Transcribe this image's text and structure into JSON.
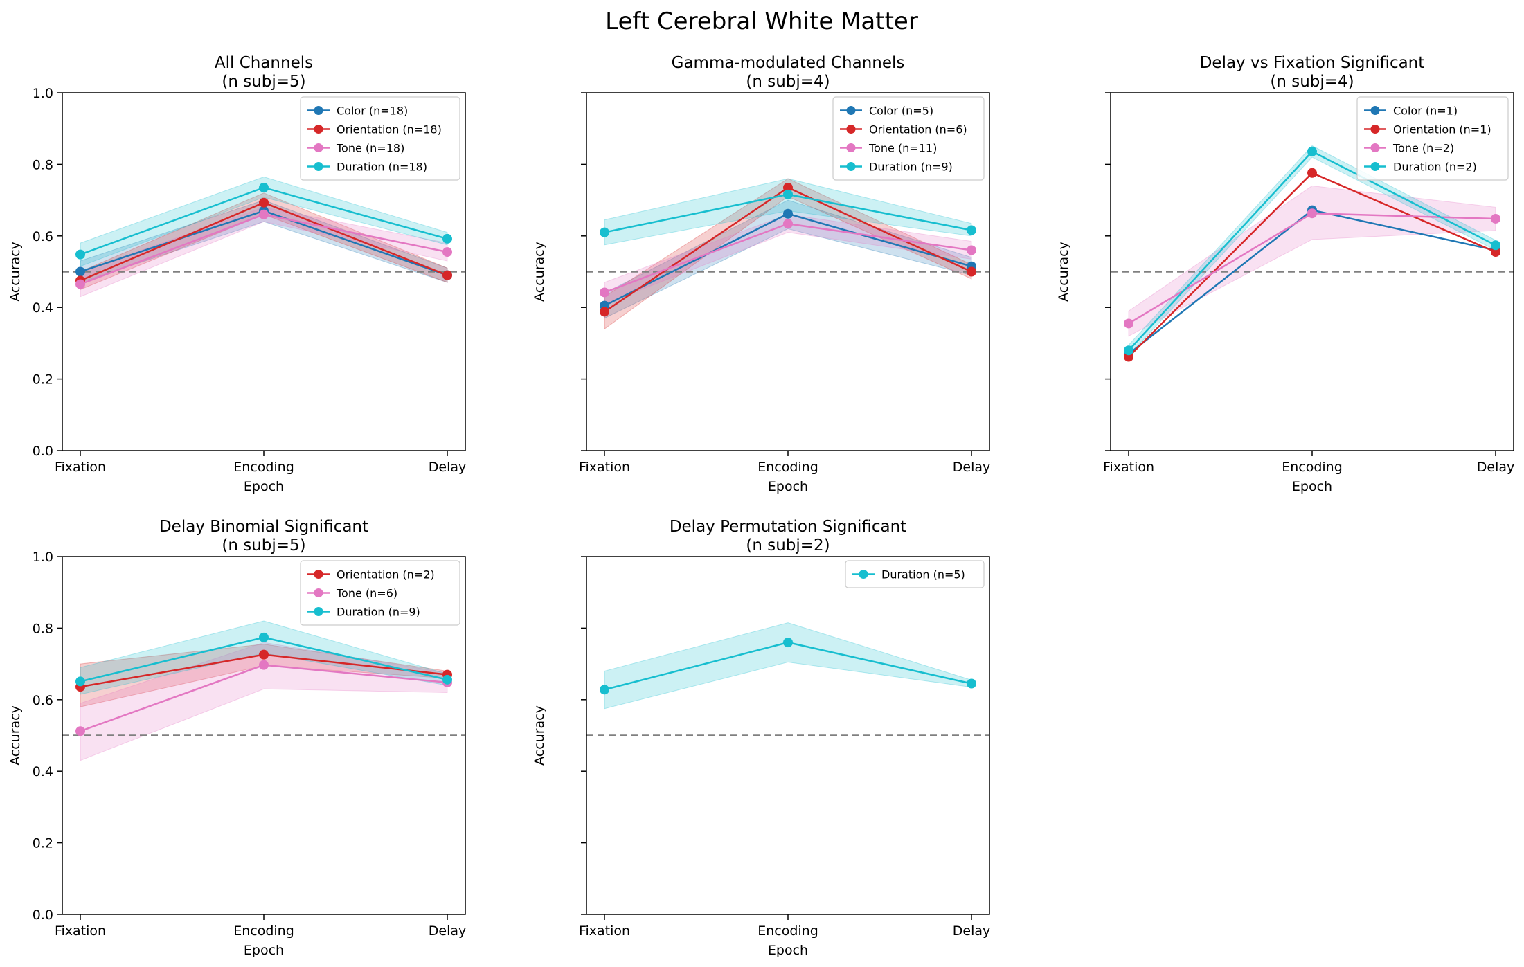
{
  "figure_title": "Left Cerebral White Matter",
  "colors": {
    "Color": "#1f77b4",
    "Orientation": "#d62728",
    "Tone": "#e377c2",
    "Duration": "#17becf",
    "chance_line": "#808080"
  },
  "chart_data": [
    {
      "type": "line",
      "title_line1": "All Channels",
      "title_line2": "(n subj=5)",
      "xlabel": "Epoch",
      "ylabel": "Accuracy",
      "categories": [
        "Fixation",
        "Encoding",
        "Delay"
      ],
      "ylim": [
        0,
        1
      ],
      "yticks": [
        "0.0",
        "0.2",
        "0.4",
        "0.6",
        "0.8",
        "1.0"
      ],
      "show_ytick_labels": true,
      "show_xlabel": true,
      "chance": 0.5,
      "legend_position": "upper right",
      "series": [
        {
          "key": "Color",
          "name": "Color (n=18)",
          "values": [
            0.5,
            0.67,
            0.49
          ],
          "lower": [
            0.47,
            0.64,
            0.47
          ],
          "upper": [
            0.53,
            0.7,
            0.51
          ]
        },
        {
          "key": "Orientation",
          "name": "Orientation (n=18)",
          "values": [
            0.475,
            0.693,
            0.49
          ],
          "lower": [
            0.45,
            0.66,
            0.47
          ],
          "upper": [
            0.5,
            0.72,
            0.51
          ]
        },
        {
          "key": "Tone",
          "name": "Tone (n=18)",
          "values": [
            0.465,
            0.66,
            0.555
          ],
          "lower": [
            0.43,
            0.64,
            0.53
          ],
          "upper": [
            0.5,
            0.68,
            0.58
          ]
        },
        {
          "key": "Duration",
          "name": "Duration (n=18)",
          "values": [
            0.548,
            0.735,
            0.592
          ],
          "lower": [
            0.515,
            0.708,
            0.575
          ],
          "upper": [
            0.58,
            0.765,
            0.61
          ]
        }
      ]
    },
    {
      "type": "line",
      "title_line1": "Gamma-modulated Channels",
      "title_line2": "(n subj=4)",
      "xlabel": "Epoch",
      "ylabel": "Accuracy",
      "categories": [
        "Fixation",
        "Encoding",
        "Delay"
      ],
      "ylim": [
        0,
        1
      ],
      "yticks": [
        "0.0",
        "0.2",
        "0.4",
        "0.6",
        "0.8",
        "1.0"
      ],
      "show_ytick_labels": false,
      "show_xlabel": true,
      "chance": 0.5,
      "legend_position": "upper right",
      "series": [
        {
          "key": "Color",
          "name": "Color (n=5)",
          "values": [
            0.405,
            0.662,
            0.515
          ],
          "lower": [
            0.37,
            0.62,
            0.49
          ],
          "upper": [
            0.44,
            0.7,
            0.54
          ]
        },
        {
          "key": "Orientation",
          "name": "Orientation (n=6)",
          "values": [
            0.388,
            0.735,
            0.5
          ],
          "lower": [
            0.34,
            0.71,
            0.48
          ],
          "upper": [
            0.43,
            0.76,
            0.52
          ]
        },
        {
          "key": "Tone",
          "name": "Tone (n=11)",
          "values": [
            0.442,
            0.634,
            0.56
          ],
          "lower": [
            0.41,
            0.61,
            0.535
          ],
          "upper": [
            0.47,
            0.66,
            0.585
          ]
        },
        {
          "key": "Duration",
          "name": "Duration (n=9)",
          "values": [
            0.61,
            0.716,
            0.616
          ],
          "lower": [
            0.575,
            0.67,
            0.6
          ],
          "upper": [
            0.645,
            0.76,
            0.635
          ]
        }
      ]
    },
    {
      "type": "line",
      "title_line1": "Delay vs Fixation Significant",
      "title_line2": "(n subj=4)",
      "xlabel": "Epoch",
      "ylabel": "Accuracy",
      "categories": [
        "Fixation",
        "Encoding",
        "Delay"
      ],
      "ylim": [
        0,
        1
      ],
      "yticks": [
        "0.0",
        "0.2",
        "0.4",
        "0.6",
        "0.8",
        "1.0"
      ],
      "show_ytick_labels": false,
      "show_xlabel": true,
      "chance": 0.5,
      "legend_position": "upper right",
      "series": [
        {
          "key": "Color",
          "name": "Color (n=1)",
          "values": [
            0.27,
            0.672,
            0.56
          ]
        },
        {
          "key": "Orientation",
          "name": "Orientation (n=1)",
          "values": [
            0.262,
            0.776,
            0.555
          ]
        },
        {
          "key": "Tone",
          "name": "Tone (n=2)",
          "values": [
            0.355,
            0.663,
            0.648
          ],
          "lower": [
            0.32,
            0.59,
            0.615
          ],
          "upper": [
            0.39,
            0.74,
            0.68
          ]
        },
        {
          "key": "Duration",
          "name": "Duration (n=2)",
          "values": [
            0.28,
            0.836,
            0.574
          ],
          "lower": [
            0.265,
            0.82,
            0.56
          ],
          "upper": [
            0.295,
            0.852,
            0.588
          ]
        }
      ]
    },
    {
      "type": "line",
      "title_line1": "Delay Binomial Significant",
      "title_line2": "(n subj=5)",
      "xlabel": "Epoch",
      "ylabel": "Accuracy",
      "categories": [
        "Fixation",
        "Encoding",
        "Delay"
      ],
      "ylim": [
        0,
        1
      ],
      "yticks": [
        "0.0",
        "0.2",
        "0.4",
        "0.6",
        "0.8",
        "1.0"
      ],
      "show_ytick_labels": true,
      "show_xlabel": true,
      "chance": 0.5,
      "legend_position": "upper right",
      "series": [
        {
          "key": "Orientation",
          "name": "Orientation (n=2)",
          "values": [
            0.636,
            0.726,
            0.67
          ],
          "lower": [
            0.58,
            0.695,
            0.66
          ],
          "upper": [
            0.7,
            0.755,
            0.68
          ]
        },
        {
          "key": "Tone",
          "name": "Tone (n=6)",
          "values": [
            0.512,
            0.697,
            0.648
          ],
          "lower": [
            0.43,
            0.63,
            0.62
          ],
          "upper": [
            0.59,
            0.76,
            0.675
          ]
        },
        {
          "key": "Duration",
          "name": "Duration (n=9)",
          "values": [
            0.651,
            0.774,
            0.656
          ],
          "lower": [
            0.615,
            0.73,
            0.64
          ],
          "upper": [
            0.69,
            0.82,
            0.672
          ]
        }
      ]
    },
    {
      "type": "line",
      "title_line1": "Delay Permutation Significant",
      "title_line2": "(n subj=2)",
      "xlabel": "Epoch",
      "ylabel": "Accuracy",
      "categories": [
        "Fixation",
        "Encoding",
        "Delay"
      ],
      "ylim": [
        0,
        1
      ],
      "yticks": [
        "0.0",
        "0.2",
        "0.4",
        "0.6",
        "0.8",
        "1.0"
      ],
      "show_ytick_labels": false,
      "show_xlabel": true,
      "chance": 0.5,
      "legend_position": "upper right",
      "series": [
        {
          "key": "Duration",
          "name": "Duration (n=5)",
          "values": [
            0.628,
            0.76,
            0.645
          ],
          "lower": [
            0.575,
            0.705,
            0.635
          ],
          "upper": [
            0.68,
            0.815,
            0.655
          ]
        }
      ]
    }
  ]
}
